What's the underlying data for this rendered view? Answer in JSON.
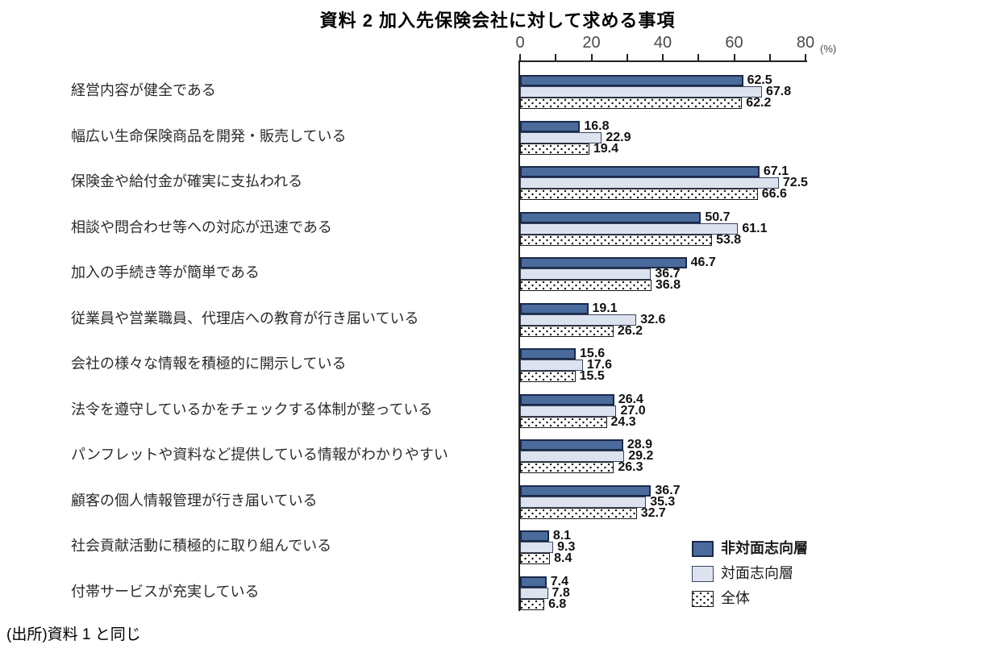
{
  "title": "資料 2 加入先保険会社に対して求める事項",
  "source_note": "(出所)資料 1 と同じ",
  "axis": {
    "unit_label": "(%)",
    "major_ticks": [
      0,
      20,
      40,
      60,
      80
    ],
    "minor_tick_step": 10,
    "max": 80
  },
  "colors": {
    "series1_fill": "#4A6B9C",
    "series1_border": "#1B2A4A",
    "series2_fill": "#DCE3EF",
    "series2_border": "#39455E",
    "series3_fill": "#FFFFFF",
    "series3_pattern": "#1A1A1A",
    "axis_line": "#222222",
    "axis_text": "#4A4A4A"
  },
  "legend": {
    "items": [
      {
        "label": "非対面志向層",
        "style": "solid-dark-blue",
        "bold": true
      },
      {
        "label": "対面志向層",
        "style": "solid-light-blue",
        "bold": false
      },
      {
        "label": "全体",
        "style": "dotted-white",
        "bold": false
      }
    ]
  },
  "chart_data": {
    "type": "bar",
    "orientation": "horizontal",
    "title": "資料 2 加入先保険会社に対して求める事項",
    "xlabel": "(%)",
    "xlim": [
      0,
      80
    ],
    "grid": false,
    "value_labels": true,
    "legend_position": "inside-bottom-right",
    "categories": [
      "経営内容が健全である",
      "幅広い生命保険商品を開発・販売している",
      "保険金や給付金が確実に支払われる",
      "相談や問合わせ等への対応が迅速である",
      "加入の手続き等が簡単である",
      "従業員や営業職員、代理店への教育が行き届いている",
      "会社の様々な情報を積極的に開示している",
      "法令を遵守しているかをチェックする体制が整っている",
      "パンフレットや資料など提供している情報がわかりやすい",
      "顧客の個人情報管理が行き届いている",
      "社会貢献活動に積極的に取り組んでいる",
      "付帯サービスが充実している"
    ],
    "series": [
      {
        "name": "非対面志向層",
        "values": [
          62.5,
          16.8,
          67.1,
          50.7,
          46.7,
          19.1,
          15.6,
          26.4,
          28.9,
          36.7,
          8.1,
          7.4
        ]
      },
      {
        "name": "対面志向層",
        "values": [
          67.8,
          22.9,
          72.5,
          61.1,
          36.7,
          32.6,
          17.6,
          27.0,
          29.2,
          35.3,
          9.3,
          7.8
        ]
      },
      {
        "name": "全体",
        "values": [
          62.2,
          19.4,
          66.6,
          53.8,
          36.8,
          26.2,
          15.5,
          24.3,
          26.3,
          32.7,
          8.4,
          6.8
        ]
      }
    ]
  }
}
